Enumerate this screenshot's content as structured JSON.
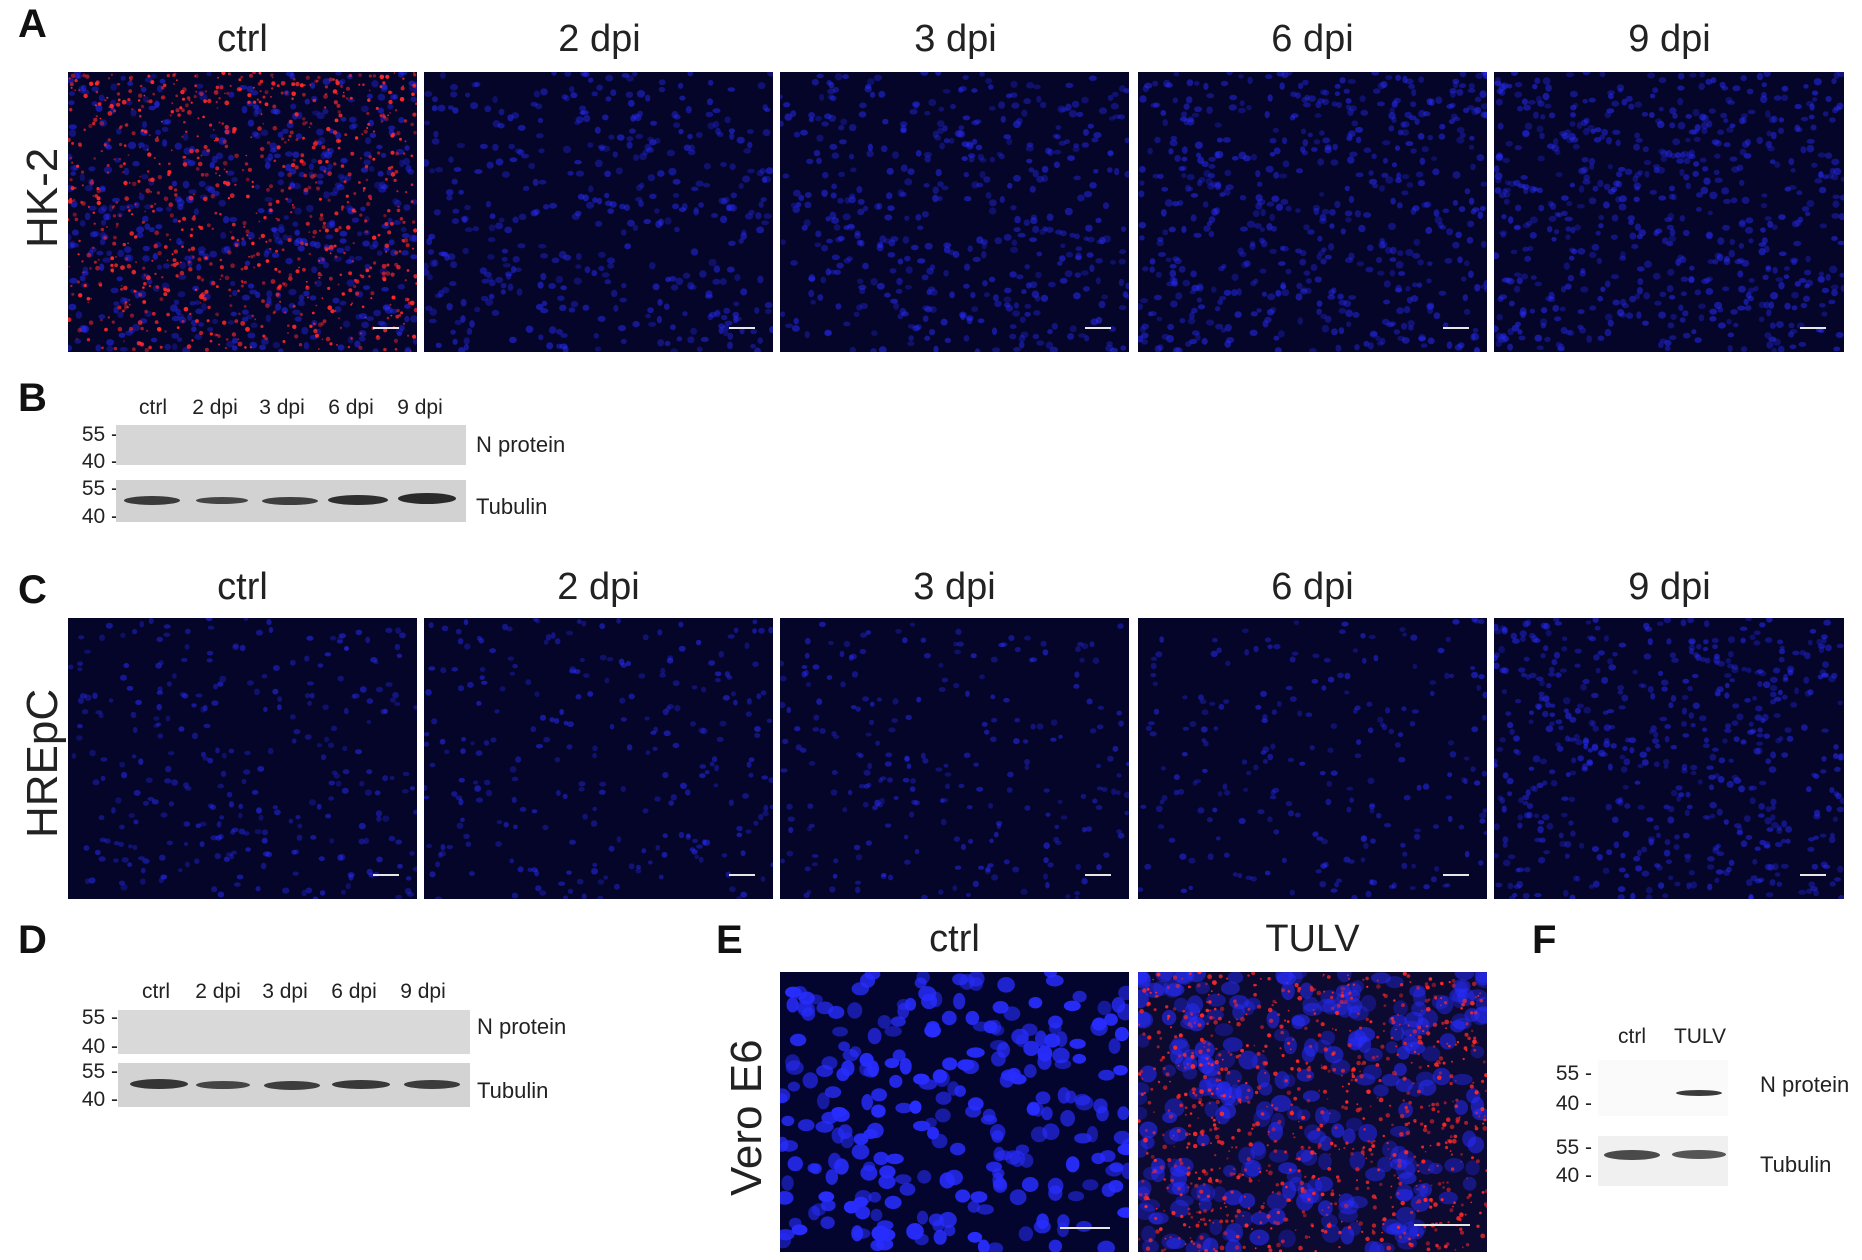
{
  "panel_A": {
    "letter": "A",
    "row_label": "HK-2",
    "columns": [
      "ctrl",
      "2 dpi",
      "3 dpi",
      "6 dpi",
      "9 dpi"
    ]
  },
  "panel_B": {
    "letter": "B",
    "lanes": [
      "ctrl",
      "2 dpi",
      "3 dpi",
      "6 dpi",
      "9 dpi"
    ],
    "mw_top": [
      "55 -",
      "40 -"
    ],
    "mw_bottom": [
      "55 -",
      "40 -"
    ],
    "band_labels": [
      "N protein",
      "Tubulin"
    ]
  },
  "panel_C": {
    "letter": "C",
    "row_label": "HREpC",
    "columns": [
      "ctrl",
      "2 dpi",
      "3 dpi",
      "6 dpi",
      "9 dpi"
    ]
  },
  "panel_D": {
    "letter": "D",
    "lanes": [
      "ctrl",
      "2 dpi",
      "3 dpi",
      "6 dpi",
      "9 dpi"
    ],
    "mw_top": [
      "55 -",
      "40 -"
    ],
    "mw_bottom": [
      "55 -",
      "40 -"
    ],
    "band_labels": [
      "N protein",
      "Tubulin"
    ]
  },
  "panel_E": {
    "letter": "E",
    "row_label": "Vero E6",
    "columns": [
      "ctrl",
      "TULV"
    ]
  },
  "panel_F": {
    "letter": "F",
    "lanes": [
      "ctrl",
      "TULV"
    ],
    "mw_top": [
      "55 -",
      "40 -"
    ],
    "mw_bottom": [
      "55 -",
      "40 -"
    ],
    "band_labels": [
      "N protein",
      "Tubulin"
    ]
  },
  "colors": {
    "dapi_blue": "#2a2aff",
    "n_protein_red": "#ff2a2a",
    "background_dark": "#05052a",
    "blot_gray": "#cfcfcf"
  }
}
